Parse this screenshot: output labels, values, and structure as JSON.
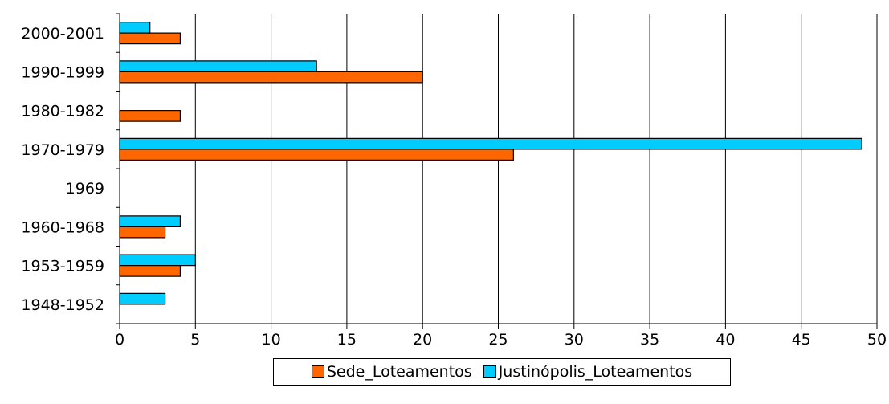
{
  "chart_data": {
    "type": "bar",
    "orientation": "horizontal",
    "categories": [
      "1948-1952",
      "1953-1959",
      "1960-1968",
      "1969",
      "1970-1979",
      "1980-1982",
      "1990-1999",
      "2000-2001"
    ],
    "series": [
      {
        "name": "Sede_Loteamentos",
        "color": "#ff6600",
        "values": [
          0,
          4,
          3,
          0,
          26,
          4,
          20,
          4
        ]
      },
      {
        "name": "Justinópolis_Loteamentos",
        "color": "#00ccff",
        "values": [
          3,
          5,
          4,
          0,
          49,
          0,
          13,
          2
        ]
      }
    ],
    "xlim": [
      0,
      50
    ],
    "xticks": [
      0,
      5,
      10,
      15,
      20,
      25,
      30,
      35,
      40,
      45,
      50
    ],
    "grid": "vertical",
    "legend": "bottom",
    "title": "",
    "xlabel": "",
    "ylabel": ""
  }
}
